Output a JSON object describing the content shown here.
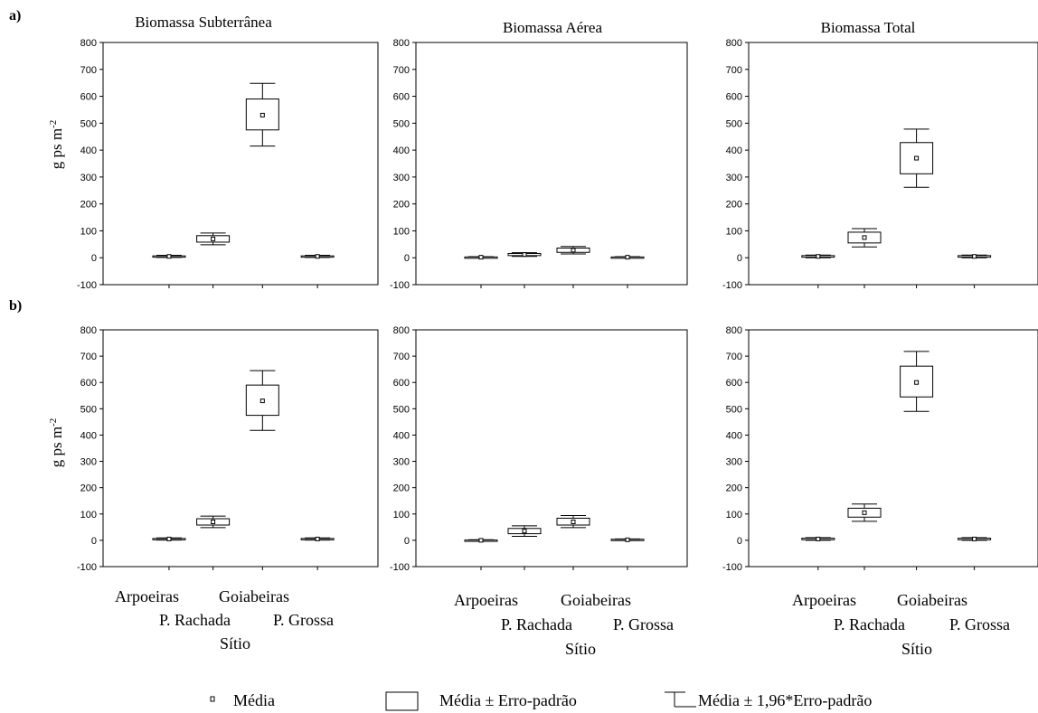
{
  "row_labels": [
    "a)",
    "b)"
  ],
  "y_axis_label": "g ps m",
  "y_axis_label_sup": "-2",
  "x_axis_title": "Sítio",
  "legend": {
    "mean": "Média",
    "box": "Média ± Erro-padrão",
    "whisker": "Média ± 1,96*Erro-padrão"
  },
  "chart_data": [
    {
      "type": "box",
      "row": "a)",
      "title": "Biomassa Subterrânea",
      "categories": [
        "Arpoeiras",
        "P. Rachada",
        "Goiabeiras",
        "P. Grossa"
      ],
      "ylim": [
        -100,
        800
      ],
      "yticks": [
        -100,
        0,
        100,
        200,
        300,
        400,
        500,
        600,
        700,
        800
      ],
      "mean": [
        5,
        70,
        530,
        5
      ],
      "box_low": [
        3,
        58,
        475,
        3
      ],
      "box_high": [
        7,
        82,
        590,
        7
      ],
      "whisker_low": [
        1,
        48,
        415,
        1
      ],
      "whisker_high": [
        9,
        92,
        648,
        9
      ]
    },
    {
      "type": "box",
      "row": "a)",
      "title": "Biomassa Aérea",
      "categories": [
        "Arpoeiras",
        "P. Rachada",
        "Goiabeiras",
        "P. Grossa"
      ],
      "ylim": [
        -100,
        800
      ],
      "yticks": [
        -100,
        0,
        100,
        200,
        300,
        400,
        500,
        600,
        700,
        800
      ],
      "mean": [
        2,
        12,
        28,
        2
      ],
      "box_low": [
        1,
        8,
        20,
        1
      ],
      "box_high": [
        3,
        16,
        36,
        3
      ],
      "whisker_low": [
        0,
        5,
        14,
        0
      ],
      "whisker_high": [
        4,
        19,
        42,
        4
      ]
    },
    {
      "type": "box",
      "row": "a)",
      "title": "Biomassa Total",
      "categories": [
        "Arpoeiras",
        "P. Rachada",
        "Goiabeiras",
        "P. Grossa"
      ],
      "ylim": [
        -100,
        800
      ],
      "yticks": [
        -100,
        0,
        100,
        200,
        300,
        400,
        500,
        600,
        700,
        800
      ],
      "mean": [
        5,
        75,
        370,
        5
      ],
      "box_low": [
        2,
        55,
        312,
        2
      ],
      "box_high": [
        8,
        95,
        428,
        8
      ],
      "whisker_low": [
        0,
        40,
        262,
        0
      ],
      "whisker_high": [
        10,
        108,
        478,
        10
      ]
    },
    {
      "type": "box",
      "row": "b)",
      "title": "",
      "categories": [
        "Arpoeiras",
        "P. Rachada",
        "Goiabeiras",
        "P. Grossa"
      ],
      "ylim": [
        -100,
        800
      ],
      "yticks": [
        -100,
        0,
        100,
        200,
        300,
        400,
        500,
        600,
        700,
        800
      ],
      "mean": [
        5,
        70,
        530,
        5
      ],
      "box_low": [
        3,
        58,
        475,
        3
      ],
      "box_high": [
        7,
        82,
        590,
        7
      ],
      "whisker_low": [
        1,
        48,
        418,
        1
      ],
      "whisker_high": [
        9,
        92,
        645,
        9
      ]
    },
    {
      "type": "box",
      "row": "b)",
      "title": "",
      "categories": [
        "Arpoeiras",
        "P. Rachada",
        "Goiabeiras",
        "P. Grossa"
      ],
      "ylim": [
        -100,
        800
      ],
      "yticks": [
        -100,
        0,
        100,
        200,
        300,
        400,
        500,
        600,
        700,
        800
      ],
      "mean": [
        0,
        35,
        70,
        2
      ],
      "box_low": [
        -1,
        25,
        58,
        0
      ],
      "box_high": [
        1,
        45,
        84,
        4
      ],
      "whisker_low": [
        -2,
        15,
        48,
        -1
      ],
      "whisker_high": [
        2,
        55,
        94,
        5
      ]
    },
    {
      "type": "box",
      "row": "b)",
      "title": "",
      "categories": [
        "Arpoeiras",
        "P. Rachada",
        "Goiabeiras",
        "P. Grossa"
      ],
      "ylim": [
        -100,
        800
      ],
      "yticks": [
        -100,
        0,
        100,
        200,
        300,
        400,
        500,
        600,
        700,
        800
      ],
      "mean": [
        5,
        105,
        600,
        5
      ],
      "box_low": [
        2,
        88,
        545,
        2
      ],
      "box_high": [
        8,
        122,
        662,
        8
      ],
      "whisker_low": [
        0,
        72,
        490,
        0
      ],
      "whisker_high": [
        10,
        138,
        718,
        10
      ]
    }
  ]
}
